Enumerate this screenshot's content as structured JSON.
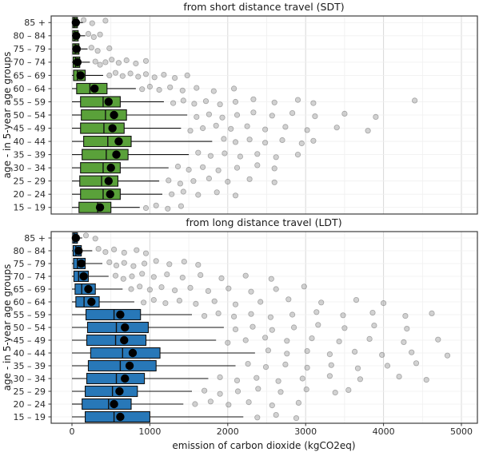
{
  "colors": {
    "sdt_box": "#5aa13a",
    "ldt_box": "#2878b8",
    "point": "#8a8a8a",
    "point_stroke": "#6e6e6e",
    "grid_major": "#d8d8d8",
    "grid_minor": "#efefef",
    "border": "#3d3d3d",
    "mean_dot": "#000000"
  },
  "chart_data": [
    {
      "type": "boxplot-horizontal",
      "title": "from short distance travel (SDT)",
      "ylabel": "age - in 5-year age groups",
      "xlim": [
        0,
        5000
      ],
      "xticks": [
        0,
        1000,
        2000,
        3000,
        4000,
        5000
      ],
      "show_x_tick_labels": false,
      "box_color": "#5aa13a",
      "legend": "none",
      "rows": [
        {
          "age": "85 +",
          "whisker_low": 0,
          "q1": 10,
          "median": 30,
          "q3": 70,
          "whisker_high": 140,
          "mean": 50,
          "outliers": [
            150,
            260,
            430
          ]
        },
        {
          "age": "80 – 84",
          "whisker_low": 0,
          "q1": 10,
          "median": 35,
          "q3": 80,
          "whisker_high": 170,
          "mean": 55,
          "outliers": [
            210,
            280,
            360
          ]
        },
        {
          "age": "75 – 79",
          "whisker_low": 0,
          "q1": 10,
          "median": 40,
          "q3": 90,
          "whisker_high": 200,
          "mean": 60,
          "outliers": [
            250,
            330,
            480
          ]
        },
        {
          "age": "70 – 74",
          "whisker_low": 0,
          "q1": 15,
          "median": 45,
          "q3": 100,
          "whisker_high": 230,
          "mean": 70,
          "outliers": [
            300,
            360,
            430,
            510,
            600,
            700,
            820,
            950
          ]
        },
        {
          "age": "65 – 69",
          "whisker_low": 0,
          "q1": 20,
          "median": 70,
          "q3": 170,
          "whisker_high": 400,
          "mean": 110,
          "outliers": [
            480,
            560,
            650,
            750,
            850,
            950,
            1060,
            1180,
            1320,
            1480
          ]
        },
        {
          "age": "60 – 64",
          "whisker_low": 0,
          "q1": 60,
          "median": 230,
          "q3": 450,
          "whisker_high": 820,
          "mean": 290,
          "outliers": [
            900,
            1000,
            1120,
            1260,
            1420,
            1600,
            1820,
            2080
          ]
        },
        {
          "age": "55 – 59",
          "whisker_low": 0,
          "q1": 110,
          "median": 400,
          "q3": 620,
          "whisker_high": 1180,
          "mean": 470,
          "outliers": [
            1300,
            1430,
            1570,
            1720,
            1900,
            2100,
            2330,
            2600,
            2900,
            3100,
            4400
          ]
        },
        {
          "age": "50 – 54",
          "whisker_low": 0,
          "q1": 120,
          "median": 430,
          "q3": 700,
          "whisker_high": 1480,
          "mean": 540,
          "outliers": [
            1600,
            1760,
            1930,
            2120,
            2330,
            2570,
            2830,
            3120,
            3500,
            3900
          ]
        },
        {
          "age": "45 – 49",
          "whisker_low": 0,
          "q1": 110,
          "median": 410,
          "q3": 670,
          "whisker_high": 1400,
          "mean": 520,
          "outliers": [
            1520,
            1680,
            1850,
            2040,
            2250,
            2480,
            2740,
            3020,
            3400,
            3800
          ]
        },
        {
          "age": "40 – 44",
          "whisker_low": 0,
          "q1": 150,
          "median": 460,
          "q3": 760,
          "whisker_high": 1800,
          "mean": 600,
          "outliers": [
            1950,
            2100,
            2280,
            2480,
            2700,
            2950,
            3100
          ]
        },
        {
          "age": "35 – 39",
          "whisker_low": 0,
          "q1": 130,
          "median": 440,
          "q3": 720,
          "whisker_high": 1500,
          "mean": 570,
          "outliers": [
            1620,
            1780,
            1960,
            2160,
            2380,
            2620,
            2900
          ]
        },
        {
          "age": "30 – 34",
          "whisker_low": 0,
          "q1": 110,
          "median": 400,
          "q3": 620,
          "whisker_high": 1240,
          "mean": 500,
          "outliers": [
            1360,
            1500,
            1680,
            1880,
            2120,
            2380,
            2600
          ]
        },
        {
          "age": "25 – 29",
          "whisker_low": 0,
          "q1": 100,
          "median": 380,
          "q3": 590,
          "whisker_high": 1120,
          "mean": 470,
          "outliers": [
            1240,
            1390,
            1560,
            1760,
            2000,
            2280,
            2600
          ]
        },
        {
          "age": "20 – 24",
          "whisker_low": 0,
          "q1": 110,
          "median": 400,
          "q3": 620,
          "whisker_high": 1160,
          "mean": 490,
          "outliers": [
            1280,
            1430,
            1620,
            1860,
            2100
          ]
        },
        {
          "age": "15 – 19",
          "whisker_low": 0,
          "q1": 90,
          "median": 330,
          "q3": 500,
          "whisker_high": 870,
          "mean": 360,
          "outliers": [
            950,
            1080,
            1230,
            1400
          ]
        }
      ]
    },
    {
      "type": "boxplot-horizontal",
      "title": "from long distance travel (LDT)",
      "ylabel": "age - in 5-year age groups",
      "xlabel": "emission of carbon dioxide (kgCO2eq)",
      "xlim": [
        0,
        5000
      ],
      "xticks": [
        0,
        1000,
        2000,
        3000,
        4000,
        5000
      ],
      "show_x_tick_labels": true,
      "box_color": "#2878b8",
      "legend": "none",
      "rows": [
        {
          "age": "85 +",
          "whisker_low": 0,
          "q1": 10,
          "median": 30,
          "q3": 70,
          "whisker_high": 130,
          "mean": 50,
          "outliers": [
            180,
            300
          ]
        },
        {
          "age": "80 – 84",
          "whisker_low": 0,
          "q1": 15,
          "median": 50,
          "q3": 120,
          "whisker_high": 260,
          "mean": 85,
          "outliers": [
            340,
            430,
            540,
            670,
            830,
            950
          ]
        },
        {
          "age": "75 – 79",
          "whisker_low": 0,
          "q1": 20,
          "median": 70,
          "q3": 170,
          "whisker_high": 390,
          "mean": 120,
          "outliers": [
            480,
            570,
            670,
            790,
            930,
            1080,
            1250,
            1440,
            1620
          ]
        },
        {
          "age": "70 – 74",
          "whisker_low": 0,
          "q1": 25,
          "median": 85,
          "q3": 210,
          "whisker_high": 470,
          "mean": 150,
          "outliers": [
            560,
            660,
            770,
            900,
            1050,
            1220,
            1420,
            1650,
            1920,
            2230,
            2560
          ]
        },
        {
          "age": "65 – 69",
          "whisker_low": 0,
          "q1": 40,
          "median": 125,
          "q3": 300,
          "whisker_high": 650,
          "mean": 210,
          "outliers": [
            760,
            870,
            1000,
            1150,
            1320,
            1520,
            1750,
            2010,
            2300,
            2620,
            2980
          ]
        },
        {
          "age": "60 – 64",
          "whisker_low": 0,
          "q1": 50,
          "median": 155,
          "q3": 350,
          "whisker_high": 800,
          "mean": 250,
          "outliers": [
            920,
            1050,
            1200,
            1380,
            1590,
            1830,
            2100,
            2420,
            2780,
            3200,
            3650,
            4000
          ]
        },
        {
          "age": "55 – 59",
          "whisker_low": 0,
          "q1": 180,
          "median": 540,
          "q3": 880,
          "whisker_high": 1540,
          "mean": 620,
          "outliers": [
            1700,
            1880,
            2080,
            2300,
            2550,
            2830,
            3140,
            3480,
            3860,
            4280,
            4620
          ]
        },
        {
          "age": "50 – 54",
          "whisker_low": 0,
          "q1": 200,
          "median": 570,
          "q3": 980,
          "whisker_high": 1950,
          "mean": 680,
          "outliers": [
            2100,
            2320,
            2570,
            2850,
            3160,
            3500,
            3880,
            4300
          ]
        },
        {
          "age": "45 – 49",
          "whisker_low": 0,
          "q1": 190,
          "median": 560,
          "q3": 950,
          "whisker_high": 1850,
          "mean": 670,
          "outliers": [
            2000,
            2230,
            2480,
            2760,
            3080,
            3430,
            3820,
            4260,
            4700
          ]
        },
        {
          "age": "40 – 44",
          "whisker_low": 0,
          "q1": 240,
          "median": 650,
          "q3": 1130,
          "whisker_high": 2350,
          "mean": 780,
          "outliers": [
            2520,
            2760,
            3020,
            3310,
            3630,
            3980,
            4360,
            4820
          ]
        },
        {
          "age": "35 – 39",
          "whisker_low": 0,
          "q1": 210,
          "median": 620,
          "q3": 1080,
          "whisker_high": 2100,
          "mean": 740,
          "outliers": [
            2260,
            2490,
            2740,
            3020,
            3330,
            3670,
            4050,
            4420
          ]
        },
        {
          "age": "30 – 34",
          "whisker_low": 0,
          "q1": 190,
          "median": 570,
          "q3": 930,
          "whisker_high": 1750,
          "mean": 680,
          "outliers": [
            1900,
            2120,
            2370,
            2650,
            2960,
            3310,
            3700,
            4200,
            4550
          ]
        },
        {
          "age": "25 – 29",
          "whisker_low": 0,
          "q1": 170,
          "median": 520,
          "q3": 840,
          "whisker_high": 1540,
          "mean": 610,
          "outliers": [
            1700,
            1900,
            2130,
            2390,
            2680,
            3010,
            3380,
            3550
          ]
        },
        {
          "age": "20 – 24",
          "whisker_low": 0,
          "q1": 130,
          "median": 470,
          "q3": 760,
          "whisker_high": 1430,
          "mean": 540,
          "outliers": [
            1580,
            1780,
            2010,
            2270,
            2570,
            2910
          ]
        },
        {
          "age": "15 – 19",
          "whisker_low": 0,
          "q1": 170,
          "median": 540,
          "q3": 1000,
          "whisker_high": 2200,
          "mean": 620,
          "outliers": [
            2380,
            2620,
            2880
          ]
        }
      ]
    }
  ]
}
